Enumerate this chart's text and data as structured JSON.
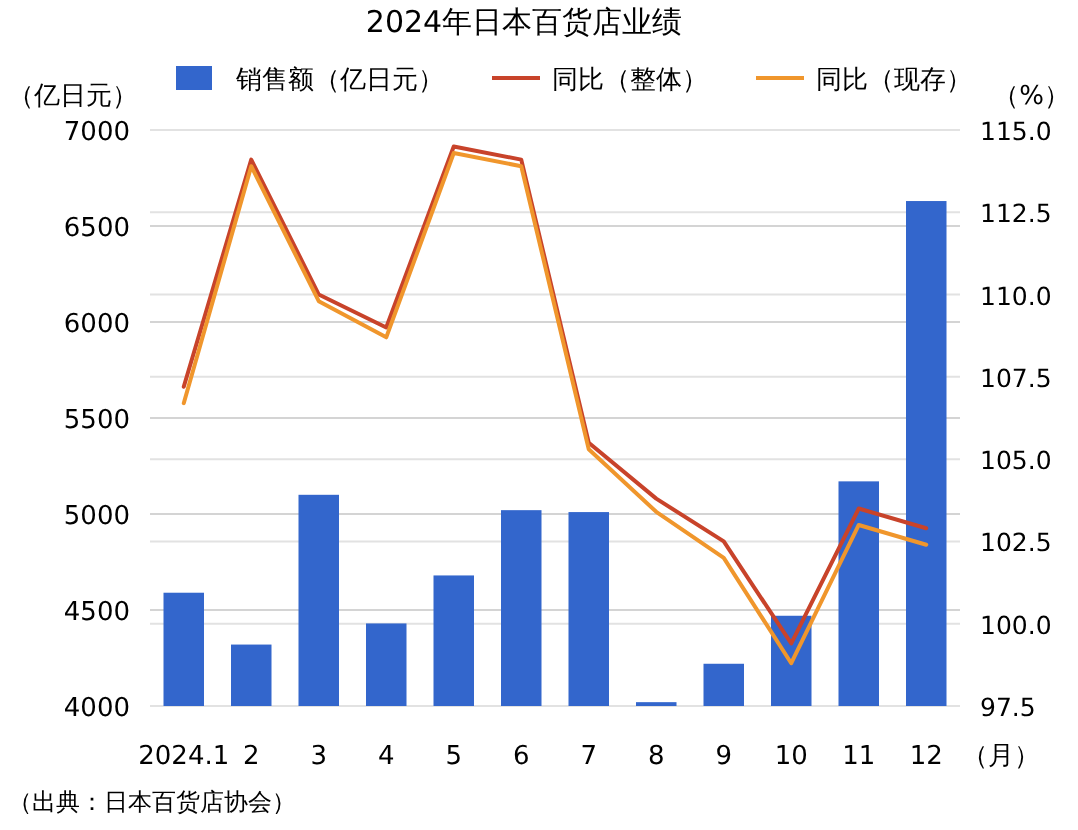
{
  "chart_data": {
    "type": "bar",
    "title": "2024年日本百货店业绩",
    "categories": [
      "2024.1",
      "2",
      "3",
      "4",
      "5",
      "6",
      "7",
      "8",
      "9",
      "10",
      "11",
      "12"
    ],
    "xlabel": "（月）",
    "ylabel": "（亿日元）",
    "y2label": "（%）",
    "series": [
      {
        "name": "销售额（亿日元）",
        "color": "#3366cc",
        "values": [
          4590,
          4320,
          5100,
          4430,
          4680,
          5020,
          5010,
          4020,
          4220,
          4470,
          5170,
          6630
        ]
      },
      {
        "name": "同比（整体）",
        "type": "line",
        "axis": "y2",
        "color": "#c8432a",
        "values": [
          107.2,
          114.1,
          110.0,
          109.0,
          114.5,
          114.1,
          105.5,
          103.8,
          102.5,
          99.4,
          103.5,
          102.9
        ]
      },
      {
        "name": "同比（现存）",
        "type": "line",
        "axis": "y2",
        "color": "#f0962c",
        "values": [
          106.7,
          113.9,
          109.8,
          108.7,
          114.3,
          113.9,
          105.3,
          103.4,
          102.0,
          98.8,
          103.0,
          102.4
        ]
      }
    ],
    "ylim": [
      4000,
      7000
    ],
    "yticks": [
      4000,
      4500,
      5000,
      5500,
      6000,
      6500,
      7000
    ],
    "y2lim": [
      97.5,
      115
    ],
    "y2ticks": [
      97.5,
      {
        "value": 100,
        "label": "100.0"
      },
      102.5,
      {
        "value": 105,
        "label": "105.0"
      },
      107.5,
      {
        "value": 110,
        "label": "110.0"
      },
      112.5,
      {
        "value": 115,
        "label": "115.0"
      }
    ],
    "grid": true,
    "legend": "top",
    "annotations": [
      "（出典：日本百货店协会）"
    ]
  }
}
